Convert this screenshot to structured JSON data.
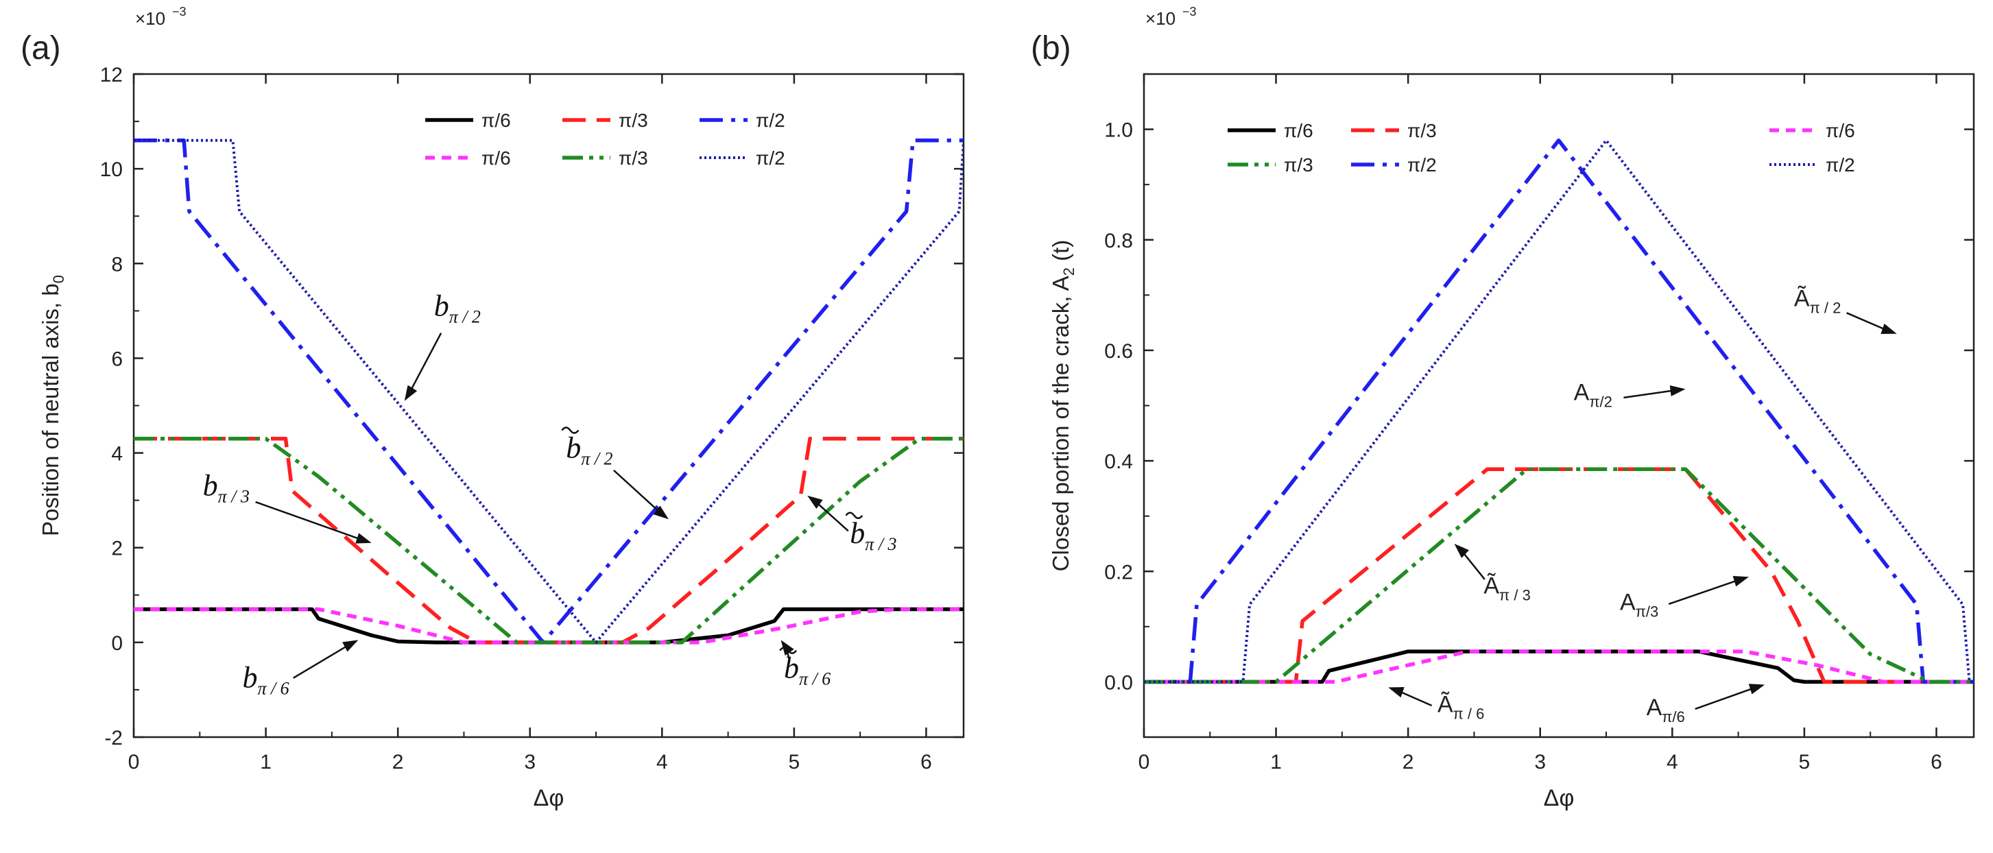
{
  "chart_data": [
    {
      "type": "line",
      "panel_label": "(a)",
      "scale_label": "×10",
      "scale_exp": "−3",
      "xlabel": "Δφ",
      "ylabel": "Position of neutral axis, b",
      "ylabel_sub": "0",
      "xlim": [
        0,
        6.2832
      ],
      "ylim": [
        -2,
        12
      ],
      "xticks": [
        0,
        1,
        2,
        3,
        4,
        5,
        6
      ],
      "yticks": [
        -2,
        0,
        2,
        4,
        6,
        8,
        10,
        12
      ],
      "legend": [
        "π/6",
        "π/3",
        "π/2",
        "π/6",
        "π/3",
        "π/2"
      ],
      "series": [
        {
          "name": "π/6 (b)",
          "color": "#000000",
          "style": "solid",
          "points": [
            [
              0,
              0.7
            ],
            [
              1.35,
              0.7
            ],
            [
              1.4,
              0.5
            ],
            [
              1.8,
              0.15
            ],
            [
              2.0,
              0.02
            ],
            [
              2.3,
              0
            ],
            [
              4.0,
              0
            ],
            [
              4.5,
              0.15
            ],
            [
              4.85,
              0.45
            ],
            [
              4.92,
              0.7
            ],
            [
              6.2832,
              0.7
            ]
          ]
        },
        {
          "name": "π/3 (b)",
          "color": "#ff2020",
          "style": "dash",
          "points": [
            [
              0,
              4.3
            ],
            [
              1.15,
              4.3
            ],
            [
              1.2,
              3.2
            ],
            [
              1.9,
              1.5
            ],
            [
              2.4,
              0.3
            ],
            [
              2.6,
              0
            ],
            [
              3.7,
              0
            ],
            [
              3.9,
              0.3
            ],
            [
              4.4,
              1.5
            ],
            [
              5.05,
              3.1
            ],
            [
              5.12,
              4.3
            ],
            [
              6.2832,
              4.3
            ]
          ]
        },
        {
          "name": "π/2 (b)",
          "color": "#2020ee",
          "style": "dashdot",
          "points": [
            [
              0,
              10.6
            ],
            [
              0.38,
              10.6
            ],
            [
              0.42,
              9.1
            ],
            [
              3.1,
              0
            ],
            [
              5.85,
              9.1
            ],
            [
              5.9,
              10.6
            ],
            [
              6.2832,
              10.6
            ]
          ]
        },
        {
          "name": "π/6 (b̃)",
          "color": "#ff33ff",
          "style": "shortdash",
          "points": [
            [
              0,
              0.7
            ],
            [
              1.4,
              0.7
            ],
            [
              2.0,
              0.35
            ],
            [
              2.5,
              0
            ],
            [
              4.3,
              0
            ],
            [
              4.9,
              0.3
            ],
            [
              5.5,
              0.65
            ],
            [
              5.8,
              0.7
            ],
            [
              6.2832,
              0.7
            ]
          ]
        },
        {
          "name": "π/3 (b̃)",
          "color": "#228b22",
          "style": "dashdotdot",
          "points": [
            [
              0,
              4.3
            ],
            [
              1.0,
              4.3
            ],
            [
              1.4,
              3.5
            ],
            [
              2.9,
              0
            ],
            [
              4.15,
              0
            ],
            [
              5.5,
              3.4
            ],
            [
              5.95,
              4.3
            ],
            [
              6.2832,
              4.3
            ]
          ]
        },
        {
          "name": "π/2 (b̃)",
          "color": "#1a1aaa",
          "style": "dot",
          "points": [
            [
              0,
              10.6
            ],
            [
              0.75,
              10.6
            ],
            [
              0.8,
              9.1
            ],
            [
              3.5,
              0
            ],
            [
              6.25,
              9.1
            ],
            [
              6.2832,
              10.6
            ]
          ]
        }
      ],
      "annotations": [
        {
          "text": "b",
          "sub": "π / 2",
          "tilde": false,
          "tx": 2.45,
          "ty": 6.9,
          "ax": 2.05,
          "ay": 5.1
        },
        {
          "text": "b",
          "sub": "π / 2",
          "tilde": true,
          "tx": 3.45,
          "ty": 3.9,
          "ax": 4.05,
          "ay": 2.6
        },
        {
          "text": "b",
          "sub": "π / 3",
          "tilde": false,
          "tx": 0.7,
          "ty": 3.1,
          "ax": 1.8,
          "ay": 2.1
        },
        {
          "text": "b",
          "sub": "π / 3",
          "tilde": true,
          "tx": 5.6,
          "ty": 2.1,
          "ax": 5.1,
          "ay": 3.1
        },
        {
          "text": "b",
          "sub": "π / 6",
          "tilde": false,
          "tx": 1.0,
          "ty": -0.95,
          "ax": 1.7,
          "ay": 0.05
        },
        {
          "text": "b",
          "sub": "π / 6",
          "tilde": true,
          "tx": 5.1,
          "ty": -0.75,
          "ax": 4.9,
          "ay": 0.05
        }
      ]
    },
    {
      "type": "line",
      "panel_label": "(b)",
      "scale_label": "×10",
      "scale_exp": "−3",
      "xlabel": "Δφ",
      "ylabel": "Closed portion of the crack, A",
      "ylabel_sub": "2",
      "ylabel_suffix": " (t)",
      "xlim": [
        0,
        6.2832
      ],
      "ylim": [
        -0.1,
        1.1
      ],
      "xticks": [
        0,
        1,
        2,
        3,
        4,
        5,
        6
      ],
      "yticks": [
        0.0,
        0.2,
        0.4,
        0.6,
        0.8,
        1.0
      ],
      "ytick_labels": [
        "0.0",
        "0.2",
        "0.4",
        "0.6",
        "0.8",
        "1.0"
      ],
      "legend": [
        "π/6",
        "π/3",
        "π/6",
        "π/3",
        "π/2",
        "π/2"
      ],
      "series": [
        {
          "name": "π/6 (A)",
          "color": "#000000",
          "style": "solid",
          "points": [
            [
              0,
              0
            ],
            [
              1.35,
              0
            ],
            [
              1.4,
              0.02
            ],
            [
              2.0,
              0.055
            ],
            [
              4.2,
              0.055
            ],
            [
              4.8,
              0.025
            ],
            [
              4.92,
              0.003
            ],
            [
              5.0,
              0
            ],
            [
              6.2832,
              0
            ]
          ]
        },
        {
          "name": "π/3 (A)",
          "color": "#ff2020",
          "style": "dash",
          "points": [
            [
              0,
              0
            ],
            [
              1.15,
              0
            ],
            [
              1.2,
              0.11
            ],
            [
              2.6,
              0.385
            ],
            [
              4.1,
              0.385
            ],
            [
              4.75,
              0.2
            ],
            [
              4.95,
              0.11
            ],
            [
              5.15,
              0
            ],
            [
              6.2832,
              0
            ]
          ]
        },
        {
          "name": "π/2 (A)",
          "color": "#2020ee",
          "style": "dashdot",
          "points": [
            [
              0,
              0
            ],
            [
              0.35,
              0
            ],
            [
              0.4,
              0.14
            ],
            [
              3.14,
              0.98
            ],
            [
              5.85,
              0.14
            ],
            [
              5.9,
              0
            ],
            [
              6.2832,
              0
            ]
          ]
        },
        {
          "name": "π/6 (Ã)",
          "color": "#ff33ff",
          "style": "shortdash",
          "points": [
            [
              0,
              0
            ],
            [
              1.45,
              0
            ],
            [
              2.45,
              0.055
            ],
            [
              4.55,
              0.055
            ],
            [
              5.1,
              0.03
            ],
            [
              5.6,
              0
            ],
            [
              6.2832,
              0
            ]
          ]
        },
        {
          "name": "π/3 (Ã)",
          "color": "#228b22",
          "style": "dashdotdot",
          "points": [
            [
              0,
              0
            ],
            [
              1.0,
              0
            ],
            [
              2.9,
              0.385
            ],
            [
              4.1,
              0.385
            ],
            [
              5.5,
              0.05
            ],
            [
              5.95,
              0
            ],
            [
              6.2832,
              0
            ]
          ]
        },
        {
          "name": "π/2 (Ã)",
          "color": "#1a1aaa",
          "style": "dot",
          "points": [
            [
              0,
              0
            ],
            [
              0.75,
              0
            ],
            [
              0.8,
              0.14
            ],
            [
              3.5,
              0.98
            ],
            [
              6.2,
              0.14
            ],
            [
              6.25,
              0
            ],
            [
              6.2832,
              0
            ]
          ]
        }
      ],
      "annotations": [
        {
          "text": "Ã",
          "sub": "π / 2",
          "tx": 5.1,
          "ty": 0.68,
          "ax": 5.7,
          "ay": 0.63
        },
        {
          "text": "A",
          "sub": "π/2",
          "tx": 3.4,
          "ty": 0.51,
          "ax": 4.1,
          "ay": 0.53
        },
        {
          "text": "Ã",
          "sub": "π / 3",
          "tx": 2.75,
          "ty": 0.16,
          "ax": 2.35,
          "ay": 0.25
        },
        {
          "text": "A",
          "sub": "π/3",
          "tx": 3.75,
          "ty": 0.13,
          "ax": 4.58,
          "ay": 0.19
        },
        {
          "text": "Ã",
          "sub": "π / 6",
          "tx": 2.4,
          "ty": -0.055,
          "ax": 1.85,
          "ay": -0.01
        },
        {
          "text": "A",
          "sub": "π/6",
          "tx": 3.95,
          "ty": -0.06,
          "ax": 4.7,
          "ay": -0.005
        }
      ]
    }
  ]
}
